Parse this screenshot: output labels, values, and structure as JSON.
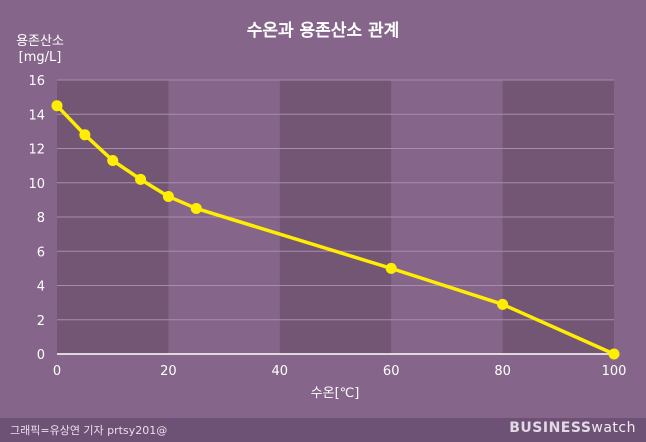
{
  "chart_data": {
    "type": "line",
    "title": "수온과 용존산소 관계",
    "ylabel_line1": "용존산소",
    "ylabel_line2": "[mg/L]",
    "xlabel": "수온[℃]",
    "xlim": [
      0,
      100
    ],
    "ylim": [
      0,
      16
    ],
    "xticks": [
      0,
      20,
      40,
      60,
      80,
      100
    ],
    "yticks": [
      0,
      2,
      4,
      6,
      8,
      10,
      12,
      14,
      16
    ],
    "x": [
      0,
      5,
      10,
      15,
      20,
      25,
      60,
      80,
      100
    ],
    "values": [
      14.5,
      12.8,
      11.3,
      10.2,
      9.2,
      8.5,
      5.0,
      2.9,
      0
    ],
    "line_color": "#ffee00",
    "band_color": "#735674",
    "shaded_bands": [
      [
        0,
        20
      ],
      [
        40,
        60
      ],
      [
        80,
        100
      ]
    ]
  },
  "footer": {
    "credit": "그래픽=유상연 기자 prtsy201@",
    "brand_bold": "BUSINESS",
    "brand_light": "watch"
  }
}
